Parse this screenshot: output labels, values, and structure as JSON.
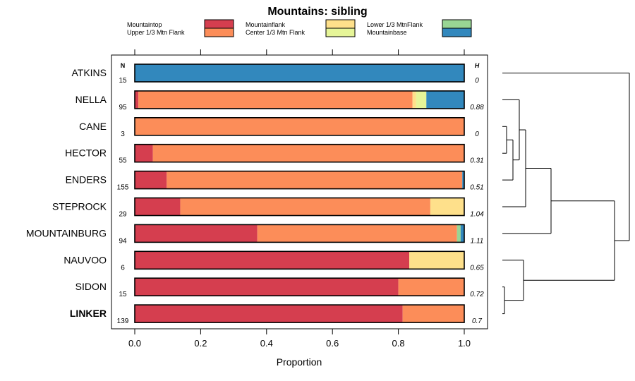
{
  "chart_data": {
    "type": "bar",
    "orientation": "horizontal",
    "stacked": true,
    "title": "Mountains: sibling",
    "xlabel": "Proportion",
    "xlim": [
      0,
      1
    ],
    "xticks": [
      "0.0",
      "0.2",
      "0.4",
      "0.6",
      "0.8",
      "1.0"
    ],
    "xtick_values": [
      0,
      0.2,
      0.4,
      0.6,
      0.8,
      1.0
    ],
    "n_header": "N",
    "h_header": "H",
    "legend": [
      {
        "name": "Mountaintop",
        "color": "#d53e4f"
      },
      {
        "name": "Upper 1/3 Mtn Flank",
        "color": "#fc8d59"
      },
      {
        "name": "Mountainflank",
        "color": "#fee08b"
      },
      {
        "name": "Center 1/3 Mtn Flank",
        "color": "#e6f598"
      },
      {
        "name": "Lower 1/3 MtnFlank",
        "color": "#99d594"
      },
      {
        "name": "Mountainbase",
        "color": "#3288bd"
      }
    ],
    "categories": [
      "ATKINS",
      "NELLA",
      "CANE",
      "HECTOR",
      "ENDERS",
      "STEPROCK",
      "MOUNTAINBURG",
      "NAUVOO",
      "SIDON",
      "LINKER"
    ],
    "bold_category": "LINKER",
    "n": [
      "15",
      "95",
      "3",
      "55",
      "155",
      "29",
      "94",
      "6",
      "15",
      "139"
    ],
    "h": [
      "0",
      "0.88",
      "0",
      "0.31",
      "0.51",
      "1.04",
      "1.11",
      "0.65",
      "0.72",
      "0.7"
    ],
    "series": [
      {
        "name": "Mountaintop",
        "values": [
          0,
          0.011,
          0,
          0.055,
          0.097,
          0.138,
          0.372,
          0.833,
          0.8,
          0.813
        ]
      },
      {
        "name": "Upper 1/3 Mtn Flank",
        "values": [
          0,
          0.832,
          1.0,
          0.945,
          0.897,
          0.759,
          0.606,
          0,
          0.2,
          0.187
        ]
      },
      {
        "name": "Mountainflank",
        "values": [
          0,
          0.011,
          0,
          0,
          0,
          0.103,
          0,
          0.167,
          0,
          0
        ]
      },
      {
        "name": "Center 1/3 Mtn Flank",
        "values": [
          0,
          0.031,
          0,
          0,
          0,
          0,
          0,
          0,
          0,
          0
        ]
      },
      {
        "name": "Lower 1/3 MtnFlank",
        "values": [
          0,
          0,
          0,
          0,
          0,
          0,
          0.011,
          0,
          0,
          0
        ]
      },
      {
        "name": "Mountainbase",
        "values": [
          1.0,
          0.115,
          0,
          0,
          0.006,
          0,
          0.011,
          0,
          0,
          0
        ]
      }
    ],
    "dendrogram": {
      "merges": [
        {
          "a": "SIDON",
          "b": "LINKER",
          "height": 0.01
        },
        {
          "a": "NAUVOO",
          "b": "SIDON+LINKER",
          "height": 0.1
        },
        {
          "a": "CANE",
          "b": "HECTOR",
          "height": 0.02
        },
        {
          "a": "CANE+HECTOR",
          "b": "ENDERS",
          "height": 0.05
        },
        {
          "a": "NELLA",
          "b": "CANE+HECTOR+ENDERS",
          "height": 0.08
        },
        {
          "a": "NELLA+CANE+HECTOR+ENDERS",
          "b": "STEPROCK",
          "height": 0.11
        },
        {
          "a": "NELLA..STEPROCK",
          "b": "MOUNTAINBURG",
          "height": 0.23
        },
        {
          "a": "NELLA..MOUNTAINBURG",
          "b": "NAUVOO+SIDON+LINKER",
          "height": 0.53
        },
        {
          "a": "ATKINS",
          "b": "REST",
          "height": 0.6
        }
      ]
    }
  }
}
